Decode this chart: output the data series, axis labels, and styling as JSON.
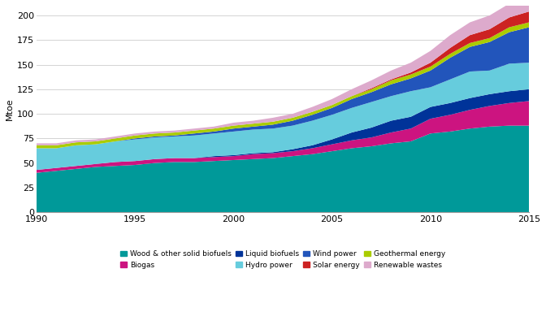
{
  "years": [
    1990,
    1991,
    1992,
    1993,
    1994,
    1995,
    1996,
    1997,
    1998,
    1999,
    2000,
    2001,
    2002,
    2003,
    2004,
    2005,
    2006,
    2007,
    2008,
    2009,
    2010,
    2011,
    2012,
    2013,
    2014,
    2015
  ],
  "series": {
    "Wood & other solid biofuels": [
      40,
      42,
      44,
      46,
      47,
      48,
      50,
      51,
      51,
      52,
      53,
      54,
      55,
      57,
      59,
      62,
      65,
      67,
      70,
      72,
      80,
      82,
      85,
      87,
      88,
      88
    ],
    "Biogas": [
      3,
      3,
      3,
      3,
      4,
      4,
      4,
      4,
      4,
      4,
      4,
      5,
      5,
      5,
      6,
      7,
      8,
      9,
      11,
      13,
      15,
      17,
      19,
      21,
      23,
      25
    ],
    "Liquid biofuels": [
      0,
      0,
      0,
      0,
      0,
      0,
      0,
      0,
      0,
      1,
      1,
      1,
      1,
      2,
      3,
      5,
      8,
      10,
      12,
      12,
      12,
      12,
      12,
      12,
      12,
      12
    ],
    "Hydro power": [
      22,
      20,
      21,
      20,
      21,
      22,
      22,
      22,
      23,
      23,
      24,
      24,
      24,
      24,
      25,
      25,
      25,
      26,
      25,
      26,
      20,
      24,
      27,
      24,
      28,
      27
    ],
    "Wind power": [
      0,
      0,
      0,
      0,
      0,
      1,
      1,
      1,
      2,
      2,
      3,
      3,
      4,
      5,
      6,
      7,
      9,
      10,
      12,
      13,
      17,
      22,
      25,
      29,
      32,
      36
    ],
    "Geothermal energy": [
      3,
      3,
      3,
      3,
      3,
      3,
      3,
      3,
      3,
      3,
      3,
      3,
      3,
      3,
      3,
      3,
      3,
      3,
      4,
      4,
      4,
      4,
      4,
      4,
      5,
      5
    ],
    "Solar energy": [
      0,
      0,
      0,
      0,
      0,
      0,
      0,
      0,
      0,
      0,
      0,
      0,
      0,
      0,
      0,
      0,
      0,
      1,
      1,
      2,
      4,
      6,
      8,
      9,
      10,
      11
    ],
    "Renewable wastes": [
      2,
      2,
      2,
      2,
      2,
      2,
      2,
      2,
      2,
      2,
      3,
      3,
      4,
      4,
      5,
      6,
      7,
      8,
      9,
      10,
      12,
      13,
      13,
      14,
      14,
      15
    ]
  },
  "colors": {
    "Wood & other solid biofuels": "#009999",
    "Biogas": "#cc1480",
    "Liquid biofuels": "#003399",
    "Hydro power": "#66ccdd",
    "Wind power": "#2255bb",
    "Solar energy": "#cc2222",
    "Geothermal energy": "#aacc00",
    "Renewable wastes": "#ddaacc"
  },
  "stack_order": [
    "Wood & other solid biofuels",
    "Biogas",
    "Liquid biofuels",
    "Hydro power",
    "Wind power",
    "Geothermal energy",
    "Solar energy",
    "Renewable wastes"
  ],
  "legend_order": [
    "Wood & other solid biofuels",
    "Biogas",
    "Liquid biofuels",
    "Hydro power",
    "Wind power",
    "Solar energy",
    "Geothermal energy",
    "Renewable wastes"
  ],
  "ylabel": "Mtoe",
  "ylim": [
    0,
    210
  ],
  "yticks": [
    0,
    25,
    50,
    75,
    100,
    125,
    150,
    175,
    200
  ],
  "xlim": [
    1990,
    2015
  ],
  "xticks": [
    1990,
    1995,
    2000,
    2005,
    2010,
    2015
  ],
  "background_color": "#ffffff",
  "grid_color": "#cccccc"
}
